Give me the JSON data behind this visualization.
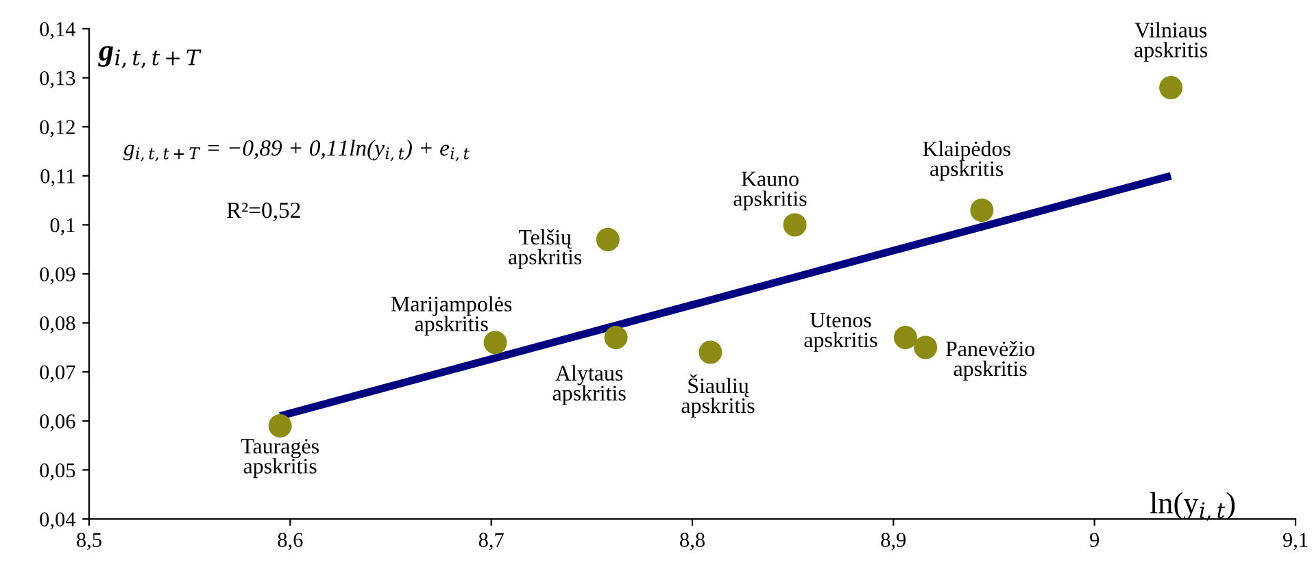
{
  "chart_data": {
    "type": "scatter",
    "ylabel": "g$_{i,t,t+T}$",
    "xlabel": "ln(y$_{i,t}$)",
    "x": [
      8.595,
      8.702,
      8.762,
      8.758,
      8.809,
      8.851,
      8.906,
      8.916,
      8.944,
      9.038
    ],
    "series": [
      {
        "color": "#8c8c14",
        "values": [
          0.059,
          0.076,
          0.077,
          0.097,
          0.074,
          0.1,
          0.077,
          0.075,
          0.103,
          0.128
        ]
      },
      {
        "type": "line",
        "marker": "none",
        "color": "#000080",
        "x": [
          8.595,
          9.038
        ],
        "values": [
          0.061,
          0.11
        ]
      }
    ],
    "marker": "circle",
    "annotations": [
      {
        "text": "Tauragės\napskritis",
        "x": 8.595,
        "y": 0.059
      },
      {
        "text": "Marijampolės\napskritis",
        "x": 8.702,
        "y": 0.076
      },
      {
        "text": "Alytaus\napskritis",
        "x": 8.762,
        "y": 0.077
      },
      {
        "text": "Telšių\napskritis",
        "x": 8.758,
        "y": 0.097
      },
      {
        "text": "Šiaulių\napskritis",
        "x": 8.809,
        "y": 0.074
      },
      {
        "text": "Kauno\napskritis",
        "x": 8.851,
        "y": 0.1
      },
      {
        "text": "Utenos\napskritis",
        "x": 8.906,
        "y": 0.077
      },
      {
        "text": "Panevėžio\napskritis",
        "x": 8.916,
        "y": 0.075
      },
      {
        "text": "Klaipėdos\napskritis",
        "x": 8.944,
        "y": 0.103
      },
      {
        "text": "Vilniaus\napskritis",
        "x": 9.038,
        "y": 0.128
      },
      "g$_{i,t,t+T}$ = −0,89 + 0,11ln(y$_{i,t}$) + e$_{i,t}$",
      "R²=0,52"
    ],
    "xlim": [
      8.5,
      9.1
    ],
    "ylim": [
      0.04,
      0.14
    ],
    "xticks": [
      {
        "value": 8.5,
        "label": "8,5"
      },
      {
        "value": 8.6,
        "label": "8,6"
      },
      {
        "value": 8.7,
        "label": "8,7"
      },
      {
        "value": 8.8,
        "label": "8,8"
      },
      {
        "value": 8.9,
        "label": "8,9"
      },
      9,
      {
        "value": 9.1,
        "label": "9,1"
      }
    ],
    "yticks": [
      {
        "value": 0.04,
        "label": "0,04"
      },
      {
        "value": 0.05,
        "label": "0,05"
      },
      {
        "value": 0.06,
        "label": "0,06"
      },
      {
        "value": 0.07,
        "label": "0,07"
      },
      {
        "value": 0.08,
        "label": "0,08"
      },
      {
        "value": 0.09,
        "label": "0,09"
      },
      {
        "value": 0.1,
        "label": "0,1"
      },
      {
        "value": 0.11,
        "label": "0,11"
      },
      {
        "value": 0.12,
        "label": "0,12"
      },
      {
        "value": 0.13,
        "label": "0,13"
      },
      {
        "value": 0.14,
        "label": "0,14"
      }
    ],
    "grid": false,
    "legend": false
  }
}
